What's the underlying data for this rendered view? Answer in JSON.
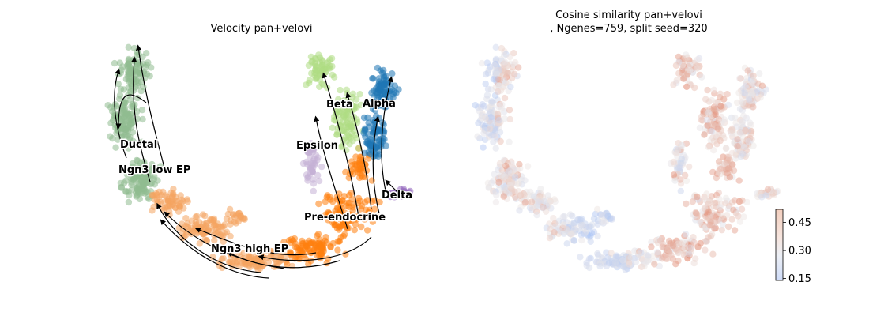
{
  "chart_data": [
    {
      "type": "scatter",
      "title": "Velocity pan+velovi",
      "xlabel": "",
      "ylabel": "",
      "grid": false,
      "legend": "on data",
      "clusters": [
        {
          "name": "Ductal",
          "color": "#8fbc8f"
        },
        {
          "name": "Ngn3 low EP",
          "color": "#8fbc8f"
        },
        {
          "name": "Ngn3 high EP",
          "color": "#f4a460"
        },
        {
          "name": "Pre-endocrine",
          "color": "#ff7f0e"
        },
        {
          "name": "Beta",
          "color": "#aedd84"
        },
        {
          "name": "Alpha",
          "color": "#1f77b4"
        },
        {
          "name": "Epsilon",
          "color": "#c5b0d5"
        },
        {
          "name": "Delta",
          "color": "#9467bd"
        }
      ]
    },
    {
      "type": "scatter",
      "title_line1": "Cosine similarity pan+velovi",
      "title_line2": ", Ngenes=759, split seed=320",
      "xlabel": "",
      "ylabel": "",
      "grid": false,
      "colorbar": {
        "colormap": "coolwarm",
        "range": [
          0.14,
          0.52
        ],
        "ticks": [
          {
            "value": 0.15,
            "label": "0.15"
          },
          {
            "value": 0.3,
            "label": "0.30"
          },
          {
            "value": 0.45,
            "label": "0.45"
          }
        ]
      }
    }
  ]
}
